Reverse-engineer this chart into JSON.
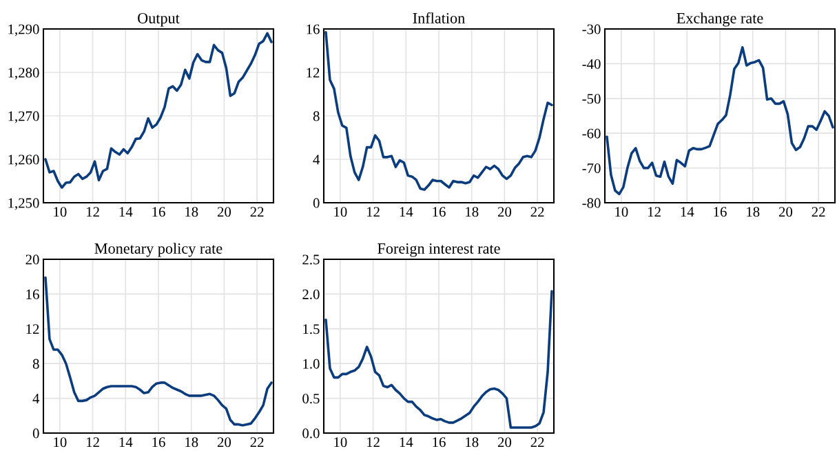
{
  "chart_data": [
    {
      "type": "line",
      "title": "Output",
      "x": [
        9.125,
        9.375,
        9.625,
        9.875,
        10.125,
        10.375,
        10.625,
        10.875,
        11.125,
        11.375,
        11.625,
        11.875,
        12.125,
        12.375,
        12.625,
        12.875,
        13.125,
        13.375,
        13.625,
        13.875,
        14.125,
        14.375,
        14.625,
        14.875,
        15.125,
        15.375,
        15.625,
        15.875,
        16.125,
        16.375,
        16.625,
        16.875,
        17.125,
        17.375,
        17.625,
        17.875,
        18.125,
        18.375,
        18.625,
        18.875,
        19.125,
        19.375,
        19.625,
        19.875,
        20.125,
        20.375,
        20.625,
        20.875,
        21.125,
        21.375,
        21.625,
        21.875,
        22.125,
        22.375,
        22.625,
        22.875
      ],
      "series": [
        {
          "color": "#0b3d7e",
          "values": [
            1260,
            1257,
            1257.3,
            1255,
            1253.5,
            1254.6,
            1254.7,
            1256,
            1256.6,
            1255.5,
            1256,
            1257,
            1259.5,
            1255.2,
            1257.3,
            1257.8,
            1262.5,
            1261.7,
            1261.1,
            1262.3,
            1261.4,
            1262.8,
            1264.7,
            1264.8,
            1266.4,
            1269.4,
            1267.3,
            1268,
            1269.6,
            1272,
            1276.3,
            1276.8,
            1275.8,
            1277.2,
            1280.6,
            1278.6,
            1282.3,
            1284.2,
            1282.8,
            1282.4,
            1282.4,
            1286.3,
            1285.1,
            1284.5,
            1281,
            1274.6,
            1275.2,
            1277.8,
            1278.8,
            1280.4,
            1282,
            1284,
            1286.6,
            1287.2,
            1289,
            1287
          ]
        }
      ],
      "xlim": [
        9,
        23
      ],
      "xticks": [
        10,
        12,
        14,
        16,
        18,
        20,
        22
      ],
      "ylim": [
        1250,
        1290
      ],
      "yticks": [
        {
          "value": 1250,
          "label": "1,250"
        },
        {
          "value": 1260,
          "label": "1,260"
        },
        {
          "value": 1270,
          "label": "1,270"
        },
        {
          "value": 1280,
          "label": "1,280"
        },
        {
          "value": 1290,
          "label": "1,290"
        }
      ],
      "grid": true,
      "marker": "none",
      "line_style": "solid"
    },
    {
      "type": "line",
      "title": "Inflation",
      "x": [
        9.125,
        9.375,
        9.625,
        9.875,
        10.125,
        10.375,
        10.625,
        10.875,
        11.125,
        11.375,
        11.625,
        11.875,
        12.125,
        12.375,
        12.625,
        12.875,
        13.125,
        13.375,
        13.625,
        13.875,
        14.125,
        14.375,
        14.625,
        14.875,
        15.125,
        15.375,
        15.625,
        15.875,
        16.125,
        16.375,
        16.625,
        16.875,
        17.125,
        17.375,
        17.625,
        17.875,
        18.125,
        18.375,
        18.625,
        18.875,
        19.125,
        19.375,
        19.625,
        19.875,
        20.125,
        20.375,
        20.625,
        20.875,
        21.125,
        21.375,
        21.625,
        21.875,
        22.125,
        22.375,
        22.625,
        22.875
      ],
      "series": [
        {
          "color": "#0b3d7e",
          "values": [
            15.7,
            11.3,
            10.5,
            8.3,
            7.1,
            6.9,
            4.3,
            2.8,
            2.1,
            3.3,
            5.1,
            5.1,
            6.2,
            5.7,
            4.2,
            4.2,
            4.3,
            3.3,
            3.9,
            3.7,
            2.5,
            2.4,
            2.1,
            1.3,
            1.2,
            1.6,
            2.1,
            2.0,
            2.0,
            1.7,
            1.4,
            2.0,
            1.9,
            1.9,
            1.8,
            1.9,
            2.5,
            2.3,
            2.8,
            3.3,
            3.1,
            3.4,
            3.1,
            2.5,
            2.2,
            2.5,
            3.2,
            3.6,
            4.2,
            4.3,
            4.2,
            4.8,
            6.0,
            7.7,
            9.2,
            9.0
          ]
        }
      ],
      "xlim": [
        9,
        23
      ],
      "xticks": [
        10,
        12,
        14,
        16,
        18,
        20,
        22
      ],
      "ylim": [
        0,
        16
      ],
      "yticks": [
        0,
        4,
        8,
        12,
        16
      ],
      "grid": true,
      "marker": "none",
      "line_style": "solid"
    },
    {
      "type": "line",
      "title": "Exchange rate",
      "x": [
        9.125,
        9.375,
        9.625,
        9.875,
        10.125,
        10.375,
        10.625,
        10.875,
        11.125,
        11.375,
        11.625,
        11.875,
        12.125,
        12.375,
        12.625,
        12.875,
        13.125,
        13.375,
        13.625,
        13.875,
        14.125,
        14.375,
        14.625,
        14.875,
        15.125,
        15.375,
        15.625,
        15.875,
        16.125,
        16.375,
        16.625,
        16.875,
        17.125,
        17.375,
        17.625,
        17.875,
        18.125,
        18.375,
        18.625,
        18.875,
        19.125,
        19.375,
        19.625,
        19.875,
        20.125,
        20.375,
        20.625,
        20.875,
        21.125,
        21.375,
        21.625,
        21.875,
        22.125,
        22.375,
        22.625,
        22.875
      ],
      "series": [
        {
          "color": "#0b3d7e",
          "values": [
            -61,
            -72,
            -76.5,
            -77.5,
            -75.5,
            -70,
            -65.8,
            -64.3,
            -68,
            -70,
            -70,
            -68.5,
            -72.2,
            -72.5,
            -68.2,
            -72.5,
            -74.5,
            -67.7,
            -68.5,
            -69.5,
            -65,
            -64.3,
            -64.6,
            -64.6,
            -64.2,
            -63.7,
            -60.5,
            -57.3,
            -56.2,
            -54.8,
            -49,
            -41.5,
            -39.8,
            -35.3,
            -40.5,
            -39.8,
            -39.5,
            -39,
            -41.2,
            -50.3,
            -50,
            -51.5,
            -51.5,
            -50.8,
            -54.5,
            -62.8,
            -64.8,
            -64,
            -61.5,
            -58,
            -58,
            -59,
            -56.5,
            -53.7,
            -55,
            -58.3
          ]
        }
      ],
      "xlim": [
        9,
        23
      ],
      "xticks": [
        10,
        12,
        14,
        16,
        18,
        20,
        22
      ],
      "ylim": [
        -80,
        -30
      ],
      "yticks": [
        -80,
        -70,
        -60,
        -50,
        -40,
        -30
      ],
      "grid": true,
      "marker": "none",
      "line_style": "solid"
    },
    {
      "type": "line",
      "title": "Monetary policy rate",
      "x": [
        9.125,
        9.375,
        9.625,
        9.875,
        10.125,
        10.375,
        10.625,
        10.875,
        11.125,
        11.375,
        11.625,
        11.875,
        12.125,
        12.375,
        12.625,
        12.875,
        13.125,
        13.375,
        13.625,
        13.875,
        14.125,
        14.375,
        14.625,
        14.875,
        15.125,
        15.375,
        15.625,
        15.875,
        16.125,
        16.375,
        16.625,
        16.875,
        17.125,
        17.375,
        17.625,
        17.875,
        18.125,
        18.375,
        18.625,
        18.875,
        19.125,
        19.375,
        19.625,
        19.875,
        20.125,
        20.375,
        20.625,
        20.875,
        21.125,
        21.375,
        21.625,
        21.875,
        22.125,
        22.375,
        22.625,
        22.875
      ],
      "series": [
        {
          "color": "#0b3d7e",
          "values": [
            17.9,
            10.8,
            9.6,
            9.6,
            9.0,
            8.0,
            6.4,
            4.7,
            3.7,
            3.7,
            3.8,
            4.1,
            4.3,
            4.7,
            5.1,
            5.3,
            5.4,
            5.4,
            5.4,
            5.4,
            5.4,
            5.4,
            5.3,
            5.0,
            4.6,
            4.7,
            5.3,
            5.7,
            5.8,
            5.8,
            5.5,
            5.2,
            5.0,
            4.8,
            4.5,
            4.3,
            4.3,
            4.3,
            4.3,
            4.4,
            4.5,
            4.3,
            3.8,
            3.2,
            2.8,
            1.5,
            1.0,
            1.0,
            0.9,
            1.0,
            1.1,
            1.7,
            2.4,
            3.2,
            5.1,
            5.8
          ]
        }
      ],
      "xlim": [
        9,
        23
      ],
      "xticks": [
        10,
        12,
        14,
        16,
        18,
        20,
        22
      ],
      "ylim": [
        0,
        20
      ],
      "yticks": [
        0,
        4,
        8,
        12,
        16,
        20
      ],
      "grid": true,
      "marker": "none",
      "line_style": "solid"
    },
    {
      "type": "line",
      "title": "Foreign interest rate",
      "x": [
        9.125,
        9.375,
        9.625,
        9.875,
        10.125,
        10.375,
        10.625,
        10.875,
        11.125,
        11.375,
        11.625,
        11.875,
        12.125,
        12.375,
        12.625,
        12.875,
        13.125,
        13.375,
        13.625,
        13.875,
        14.125,
        14.375,
        14.625,
        14.875,
        15.125,
        15.375,
        15.625,
        15.875,
        16.125,
        16.375,
        16.625,
        16.875,
        17.125,
        17.375,
        17.625,
        17.875,
        18.125,
        18.375,
        18.625,
        18.875,
        19.125,
        19.375,
        19.625,
        19.875,
        20.125,
        20.375,
        20.625,
        20.875,
        21.125,
        21.375,
        21.625,
        21.875,
        22.125,
        22.375,
        22.625,
        22.875
      ],
      "series": [
        {
          "color": "#0b3d7e",
          "values": [
            1.63,
            0.93,
            0.8,
            0.8,
            0.85,
            0.85,
            0.88,
            0.9,
            0.95,
            1.07,
            1.24,
            1.1,
            0.88,
            0.83,
            0.68,
            0.66,
            0.69,
            0.62,
            0.57,
            0.5,
            0.45,
            0.45,
            0.38,
            0.33,
            0.26,
            0.24,
            0.21,
            0.19,
            0.2,
            0.17,
            0.15,
            0.15,
            0.18,
            0.21,
            0.25,
            0.29,
            0.38,
            0.45,
            0.53,
            0.59,
            0.63,
            0.64,
            0.62,
            0.57,
            0.5,
            0.08,
            0.08,
            0.08,
            0.08,
            0.08,
            0.08,
            0.1,
            0.14,
            0.3,
            0.88,
            2.04
          ]
        }
      ],
      "xlim": [
        9,
        23
      ],
      "xticks": [
        10,
        12,
        14,
        16,
        18,
        20,
        22
      ],
      "ylim": [
        0,
        2.5
      ],
      "yticks": [
        {
          "value": 0,
          "label": "0.0"
        },
        {
          "value": 0.5,
          "label": "0.5"
        },
        {
          "value": 1.0,
          "label": "1.0"
        },
        {
          "value": 1.5,
          "label": "1.5"
        },
        {
          "value": 2.0,
          "label": "2.0"
        },
        {
          "value": 2.5,
          "label": "2.5"
        }
      ],
      "grid": true,
      "marker": "none",
      "line_style": "solid"
    }
  ]
}
